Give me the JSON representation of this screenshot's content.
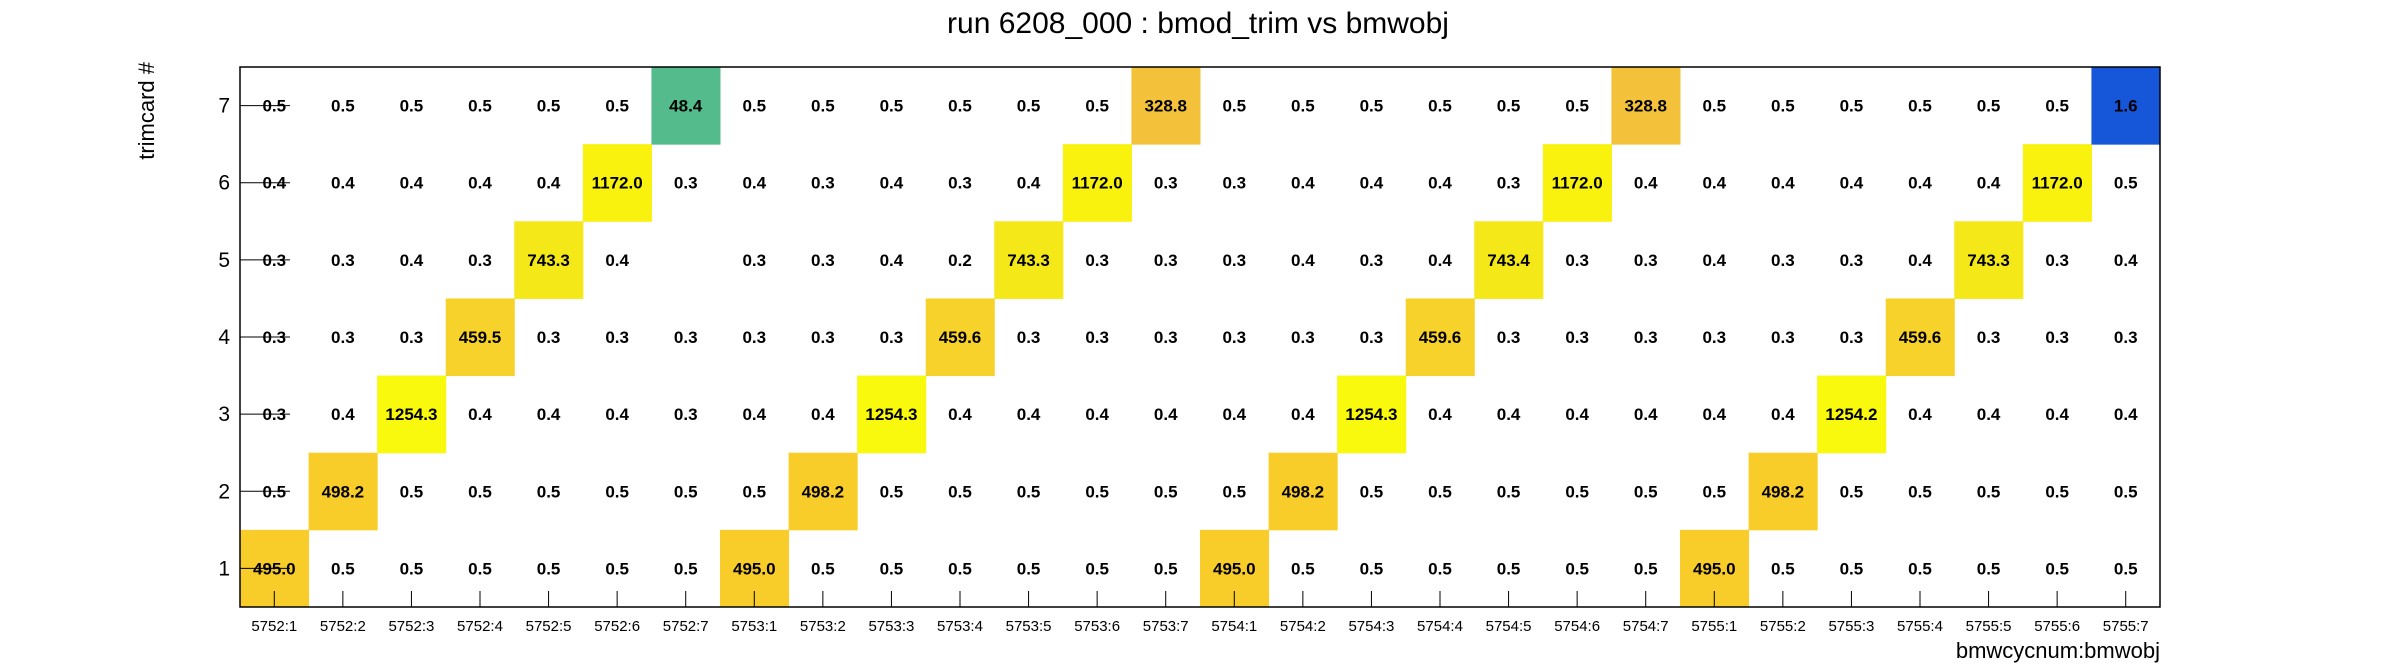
{
  "chart_data": {
    "type": "heatmap",
    "title": "run 6208_000 : bmod_trim vs bmwobj",
    "xlabel": "bmwcycnum:bmwobj",
    "ylabel": "trimcard #",
    "x_categories": [
      "5752:1",
      "5752:2",
      "5752:3",
      "5752:4",
      "5752:5",
      "5752:6",
      "5752:7",
      "5753:1",
      "5753:2",
      "5753:3",
      "5753:4",
      "5753:5",
      "5753:6",
      "5753:7",
      "5754:1",
      "5754:2",
      "5754:3",
      "5754:4",
      "5754:5",
      "5754:6",
      "5754:7",
      "5755:1",
      "5755:2",
      "5755:3",
      "5755:4",
      "5755:5",
      "5755:6",
      "5755:7"
    ],
    "y_categories": [
      "1",
      "2",
      "3",
      "4",
      "5",
      "6",
      "7"
    ],
    "values": [
      [
        "495.0",
        "0.5",
        "0.5",
        "0.5",
        "0.5",
        "0.5",
        "0.5",
        "495.0",
        "0.5",
        "0.5",
        "0.5",
        "0.5",
        "0.5",
        "0.5",
        "495.0",
        "0.5",
        "0.5",
        "0.5",
        "0.5",
        "0.5",
        "0.5",
        "495.0",
        "0.5",
        "0.5",
        "0.5",
        "0.5",
        "0.5",
        "0.5"
      ],
      [
        "0.5",
        "498.2",
        "0.5",
        "0.5",
        "0.5",
        "0.5",
        "0.5",
        "0.5",
        "498.2",
        "0.5",
        "0.5",
        "0.5",
        "0.5",
        "0.5",
        "0.5",
        "498.2",
        "0.5",
        "0.5",
        "0.5",
        "0.5",
        "0.5",
        "0.5",
        "498.2",
        "0.5",
        "0.5",
        "0.5",
        "0.5",
        "0.5"
      ],
      [
        "0.3",
        "0.4",
        "1254.3",
        "0.4",
        "0.4",
        "0.4",
        "0.3",
        "0.4",
        "0.4",
        "1254.3",
        "0.4",
        "0.4",
        "0.4",
        "0.4",
        "0.4",
        "0.4",
        "1254.3",
        "0.4",
        "0.4",
        "0.4",
        "0.4",
        "0.4",
        "0.4",
        "1254.2",
        "0.4",
        "0.4",
        "0.4",
        "0.4"
      ],
      [
        "0.3",
        "0.3",
        "0.3",
        "459.5",
        "0.3",
        "0.3",
        "0.3",
        "0.3",
        "0.3",
        "0.3",
        "459.6",
        "0.3",
        "0.3",
        "0.3",
        "0.3",
        "0.3",
        "0.3",
        "459.6",
        "0.3",
        "0.3",
        "0.3",
        "0.3",
        "0.3",
        "0.3",
        "459.6",
        "0.3",
        "0.3",
        "0.3"
      ],
      [
        "0.3",
        "0.3",
        "0.4",
        "0.3",
        "743.3",
        "0.4",
        null,
        "0.3",
        "0.3",
        "0.4",
        "0.2",
        "743.3",
        "0.3",
        "0.3",
        "0.3",
        "0.4",
        "0.3",
        "0.4",
        "743.4",
        "0.3",
        "0.3",
        "0.4",
        "0.3",
        "0.3",
        "0.4",
        "743.3",
        "0.3",
        "0.4"
      ],
      [
        "0.4",
        "0.4",
        "0.4",
        "0.4",
        "0.4",
        "1172.0",
        "0.3",
        "0.4",
        "0.3",
        "0.4",
        "0.3",
        "0.4",
        "1172.0",
        "0.3",
        "0.3",
        "0.4",
        "0.4",
        "0.4",
        "0.3",
        "1172.0",
        "0.4",
        "0.4",
        "0.4",
        "0.4",
        "0.4",
        "0.4",
        "1172.0",
        "0.5"
      ],
      [
        "0.5",
        "0.5",
        "0.5",
        "0.5",
        "0.5",
        "0.5",
        "48.4",
        "0.5",
        "0.5",
        "0.5",
        "0.5",
        "0.5",
        "0.5",
        "328.8",
        "0.5",
        "0.5",
        "0.5",
        "0.5",
        "0.5",
        "0.5",
        "328.8",
        "0.5",
        "0.5",
        "0.5",
        "0.5",
        "0.5",
        "0.5",
        "1.6"
      ]
    ],
    "colors": {
      "1172.0": "#f8f20e",
      "1254.3": "#f9f90d",
      "1254.2": "#f9f90d",
      "743.3": "#f5e819",
      "743.4": "#f5e819",
      "459.5": "#f6d22b",
      "459.6": "#f6d22b",
      "495.0": "#f8cd2a",
      "498.2": "#f8cd2a",
      "328.8": "#f3c23a",
      "48.4": "#54bc8c",
      "1.6": "#1656d8"
    },
    "grid": false
  }
}
